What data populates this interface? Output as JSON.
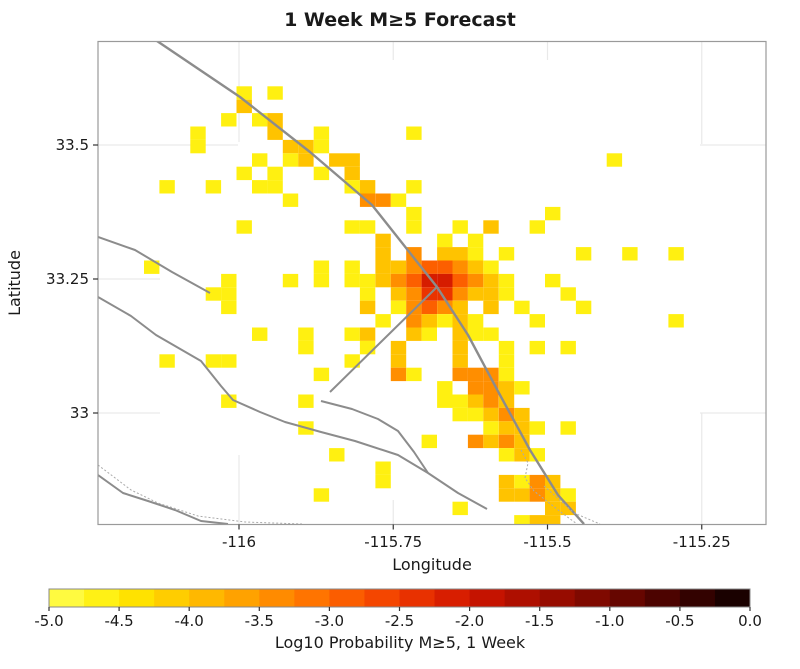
{
  "title": "1 Week M≥5 Forecast",
  "chart_data": {
    "type": "heatmap",
    "title": "1 Week M≥5 Forecast",
    "xlabel": "Longitude",
    "ylabel": "Latitude",
    "xlim": [
      -116.2285,
      -115.146
    ],
    "ylim": [
      32.792,
      33.693
    ],
    "x_ticks": [
      -116,
      -115.75,
      -115.5,
      -115.25
    ],
    "x_tick_labels": [
      "-116",
      "-115.75",
      "-115.5",
      "-115.25"
    ],
    "y_ticks": [
      33.5,
      33.25,
      33
    ],
    "y_tick_labels": [
      "33.5",
      "33.25",
      "33"
    ],
    "grid_on": true,
    "gridline_color": "#e9e9e9",
    "cell_grid": {
      "lon_start": -116.2165,
      "lat_start": 33.672,
      "step": 0.025,
      "value_units": "log10 probability of M>=5 in 1 week"
    },
    "cells": [
      [
        9,
        3,
        -4.6
      ],
      [
        11,
        3,
        -4.6
      ],
      [
        9,
        4,
        -4.0
      ],
      [
        8,
        5,
        -4.6
      ],
      [
        10,
        5,
        -4.6
      ],
      [
        11,
        5,
        -4.0
      ],
      [
        6,
        6,
        -4.6
      ],
      [
        11,
        6,
        -4.0
      ],
      [
        14,
        6,
        -4.6
      ],
      [
        20,
        6,
        -4.6
      ],
      [
        6,
        7,
        -4.6
      ],
      [
        12,
        7,
        -4.0
      ],
      [
        13,
        7,
        -4.0
      ],
      [
        14,
        7,
        -4.6
      ],
      [
        10,
        8,
        -4.6
      ],
      [
        12,
        8,
        -4.6
      ],
      [
        13,
        8,
        -4.0
      ],
      [
        15,
        8,
        -4.0
      ],
      [
        16,
        8,
        -4.0
      ],
      [
        33,
        8,
        -4.6
      ],
      [
        9,
        9,
        -4.6
      ],
      [
        11,
        9,
        -4.6
      ],
      [
        14,
        9,
        -4.6
      ],
      [
        16,
        9,
        -4.0
      ],
      [
        4,
        10,
        -4.6
      ],
      [
        7,
        10,
        -4.6
      ],
      [
        10,
        10,
        -4.6
      ],
      [
        11,
        10,
        -4.6
      ],
      [
        16,
        10,
        -4.6
      ],
      [
        17,
        10,
        -4.0
      ],
      [
        20,
        10,
        -4.6
      ],
      [
        12,
        11,
        -4.6
      ],
      [
        17,
        11,
        -3.4
      ],
      [
        18,
        11,
        -3.4
      ],
      [
        19,
        11,
        -4.6
      ],
      [
        20,
        12,
        -4.6
      ],
      [
        29,
        12,
        -4.6
      ],
      [
        9,
        13,
        -4.6
      ],
      [
        16,
        13,
        -4.6
      ],
      [
        17,
        13,
        -4.6
      ],
      [
        20,
        13,
        -4.6
      ],
      [
        23,
        13,
        -4.6
      ],
      [
        25,
        13,
        -4.0
      ],
      [
        28,
        13,
        -4.6
      ],
      [
        18,
        14,
        -4.0
      ],
      [
        22,
        14,
        -4.6
      ],
      [
        24,
        14,
        -4.6
      ],
      [
        18,
        15,
        -4.0
      ],
      [
        20,
        15,
        -3.4
      ],
      [
        22,
        15,
        -4.0
      ],
      [
        23,
        15,
        -4.0
      ],
      [
        24,
        15,
        -4.6
      ],
      [
        26,
        15,
        -4.6
      ],
      [
        31,
        15,
        -4.6
      ],
      [
        34,
        15,
        -4.6
      ],
      [
        37,
        15,
        -4.6
      ],
      [
        3,
        16,
        -4.6
      ],
      [
        14,
        16,
        -4.6
      ],
      [
        16,
        16,
        -4.6
      ],
      [
        18,
        16,
        -4.0
      ],
      [
        19,
        16,
        -4.0
      ],
      [
        20,
        16,
        -3.4
      ],
      [
        21,
        16,
        -2.9
      ],
      [
        22,
        16,
        -2.9
      ],
      [
        23,
        16,
        -3.4
      ],
      [
        24,
        16,
        -4.0
      ],
      [
        25,
        16,
        -4.6
      ],
      [
        8,
        17,
        -4.6
      ],
      [
        12,
        17,
        -4.6
      ],
      [
        14,
        17,
        -4.6
      ],
      [
        16,
        17,
        -4.6
      ],
      [
        17,
        17,
        -4.6
      ],
      [
        18,
        17,
        -4.0
      ],
      [
        19,
        17,
        -3.4
      ],
      [
        20,
        17,
        -2.9
      ],
      [
        21,
        17,
        -2.1
      ],
      [
        22,
        17,
        -2.1
      ],
      [
        23,
        17,
        -2.9
      ],
      [
        24,
        17,
        -3.4
      ],
      [
        25,
        17,
        -4.0
      ],
      [
        26,
        17,
        -4.6
      ],
      [
        29,
        17,
        -4.6
      ],
      [
        7,
        18,
        -4.6
      ],
      [
        8,
        18,
        -4.6
      ],
      [
        17,
        18,
        -4.6
      ],
      [
        19,
        18,
        -4.0
      ],
      [
        20,
        18,
        -3.4
      ],
      [
        21,
        18,
        -2.4
      ],
      [
        22,
        18,
        -2.4
      ],
      [
        23,
        18,
        -3.4
      ],
      [
        24,
        18,
        -4.0
      ],
      [
        25,
        18,
        -4.0
      ],
      [
        26,
        18,
        -4.6
      ],
      [
        30,
        18,
        -4.6
      ],
      [
        8,
        19,
        -4.6
      ],
      [
        17,
        19,
        -4.0
      ],
      [
        19,
        19,
        -4.6
      ],
      [
        20,
        19,
        -3.4
      ],
      [
        21,
        19,
        -2.9
      ],
      [
        22,
        19,
        -3.4
      ],
      [
        23,
        19,
        -4.0
      ],
      [
        25,
        19,
        -4.0
      ],
      [
        27,
        19,
        -4.6
      ],
      [
        31,
        19,
        -4.6
      ],
      [
        18,
        20,
        -4.6
      ],
      [
        20,
        20,
        -3.4
      ],
      [
        21,
        20,
        -4.0
      ],
      [
        22,
        20,
        -4.6
      ],
      [
        23,
        20,
        -4.0
      ],
      [
        24,
        20,
        -4.6
      ],
      [
        28,
        20,
        -4.6
      ],
      [
        37,
        20,
        -4.6
      ],
      [
        10,
        21,
        -4.6
      ],
      [
        13,
        21,
        -4.6
      ],
      [
        16,
        21,
        -4.6
      ],
      [
        17,
        21,
        -4.0
      ],
      [
        20,
        21,
        -4.0
      ],
      [
        21,
        21,
        -4.6
      ],
      [
        23,
        21,
        -4.0
      ],
      [
        24,
        21,
        -4.6
      ],
      [
        25,
        21,
        -4.6
      ],
      [
        13,
        22,
        -4.6
      ],
      [
        17,
        22,
        -4.6
      ],
      [
        19,
        22,
        -4.0
      ],
      [
        23,
        22,
        -4.0
      ],
      [
        26,
        22,
        -4.6
      ],
      [
        28,
        22,
        -4.6
      ],
      [
        30,
        22,
        -4.6
      ],
      [
        4,
        23,
        -4.6
      ],
      [
        7,
        23,
        -4.6
      ],
      [
        8,
        23,
        -4.6
      ],
      [
        16,
        23,
        -4.6
      ],
      [
        19,
        23,
        -4.0
      ],
      [
        23,
        23,
        -4.0
      ],
      [
        26,
        23,
        -4.6
      ],
      [
        14,
        24,
        -4.6
      ],
      [
        19,
        24,
        -3.4
      ],
      [
        20,
        24,
        -4.6
      ],
      [
        23,
        24,
        -3.4
      ],
      [
        24,
        24,
        -3.4
      ],
      [
        25,
        24,
        -3.4
      ],
      [
        26,
        24,
        -4.6
      ],
      [
        22,
        25,
        -4.6
      ],
      [
        24,
        25,
        -3.4
      ],
      [
        25,
        25,
        -3.4
      ],
      [
        26,
        25,
        -4.0
      ],
      [
        27,
        25,
        -4.6
      ],
      [
        8,
        26,
        -4.6
      ],
      [
        13,
        26,
        -4.6
      ],
      [
        22,
        26,
        -4.6
      ],
      [
        23,
        26,
        -4.6
      ],
      [
        24,
        26,
        -4.0
      ],
      [
        25,
        26,
        -3.4
      ],
      [
        26,
        26,
        -4.0
      ],
      [
        23,
        27,
        -4.6
      ],
      [
        24,
        27,
        -4.6
      ],
      [
        25,
        27,
        -4.0
      ],
      [
        26,
        27,
        -3.4
      ],
      [
        27,
        27,
        -4.0
      ],
      [
        13,
        28,
        -4.6
      ],
      [
        25,
        28,
        -4.6
      ],
      [
        26,
        28,
        -4.0
      ],
      [
        27,
        28,
        -4.0
      ],
      [
        28,
        28,
        -4.6
      ],
      [
        30,
        28,
        -4.6
      ],
      [
        21,
        29,
        -4.6
      ],
      [
        24,
        29,
        -3.4
      ],
      [
        25,
        29,
        -4.0
      ],
      [
        26,
        29,
        -3.4
      ],
      [
        27,
        29,
        -4.0
      ],
      [
        15,
        30,
        -4.6
      ],
      [
        26,
        30,
        -4.6
      ],
      [
        27,
        30,
        -4.0
      ],
      [
        28,
        30,
        -4.6
      ],
      [
        18,
        31,
        -4.6
      ],
      [
        18,
        32,
        -4.6
      ],
      [
        26,
        32,
        -4.0
      ],
      [
        27,
        32,
        -4.6
      ],
      [
        28,
        32,
        -3.4
      ],
      [
        29,
        32,
        -4.0
      ],
      [
        14,
        33,
        -4.6
      ],
      [
        26,
        33,
        -4.0
      ],
      [
        27,
        33,
        -4.0
      ],
      [
        28,
        33,
        -3.4
      ],
      [
        29,
        33,
        -4.0
      ],
      [
        30,
        33,
        -4.6
      ],
      [
        23,
        34,
        -4.6
      ],
      [
        29,
        34,
        -4.0
      ],
      [
        30,
        34,
        -4.0
      ],
      [
        27,
        35,
        -4.6
      ],
      [
        28,
        35,
        -4.0
      ],
      [
        29,
        35,
        -4.0
      ]
    ],
    "faults": {
      "color": "#8c8c8c",
      "solid": [
        [
          [
            -116.1329,
            33.694
          ],
          [
            -115.9984,
            33.5896
          ],
          [
            -115.8849,
            33.4869
          ],
          [
            -115.7844,
            33.3881
          ],
          [
            -115.6791,
            33.2351
          ],
          [
            -115.6288,
            33.1455
          ],
          [
            -115.577,
            33.0336
          ],
          [
            -115.5284,
            32.931
          ],
          [
            -115.483,
            32.847
          ],
          [
            -115.4409,
            32.7929
          ]
        ],
        [
          [
            -115.6791,
            33.2351
          ],
          [
            -115.7633,
            33.1399
          ],
          [
            -115.8525,
            33.0392
          ]
        ],
        [
          [
            -116.2285,
            33.3284
          ],
          [
            -116.1686,
            33.3041
          ],
          [
            -116.1086,
            33.2631
          ],
          [
            -116.047,
            33.2239
          ]
        ],
        [
          [
            -116.2285,
            33.2164
          ],
          [
            -116.175,
            33.181
          ],
          [
            -116.1345,
            33.1455
          ],
          [
            -116.0616,
            33.097
          ],
          [
            -116.0292,
            33.0504
          ],
          [
            -116.0097,
            33.0243
          ],
          [
            -115.966,
            33.0019
          ],
          [
            -115.9255,
            32.9832
          ],
          [
            -115.8671,
            32.9646
          ],
          [
            -115.812,
            32.9478
          ],
          [
            -115.7423,
            32.9216
          ],
          [
            -115.6937,
            32.8881
          ],
          [
            -115.6451,
            32.8507
          ],
          [
            -115.5981,
            32.8209
          ]
        ],
        [
          [
            -115.8671,
            33.0224
          ],
          [
            -115.8168,
            33.0075
          ],
          [
            -115.7747,
            32.9888
          ],
          [
            -115.7423,
            32.9664
          ],
          [
            -115.7164,
            32.9272
          ],
          [
            -115.6937,
            32.8881
          ]
        ],
        [
          [
            -116.2285,
            32.8843
          ],
          [
            -116.188,
            32.8507
          ],
          [
            -116.1475,
            32.8358
          ],
          [
            -116.1037,
            32.819
          ],
          [
            -116.0616,
            32.7985
          ],
          [
            -116.0178,
            32.7929
          ]
        ]
      ],
      "dotted": [
        [
          [
            -116.2285,
            32.903
          ],
          [
            -116.175,
            32.8563
          ],
          [
            -116.1313,
            32.8321
          ],
          [
            -116.0664,
            32.8078
          ],
          [
            -115.9903,
            32.7966
          ],
          [
            -115.8979,
            32.7929
          ]
        ],
        [
          [
            -115.543,
            32.931
          ],
          [
            -115.5316,
            32.9067
          ],
          [
            -115.5365,
            32.8787
          ],
          [
            -115.5219,
            32.8545
          ],
          [
            -115.4992,
            32.834
          ],
          [
            -115.4765,
            32.8134
          ],
          [
            -115.4522,
            32.7929
          ]
        ],
        [
          [
            -115.5057,
            32.8638
          ],
          [
            -115.4798,
            32.8377
          ],
          [
            -115.4571,
            32.8134
          ],
          [
            -115.4149,
            32.7929
          ]
        ]
      ]
    },
    "colorbar": {
      "label": "Log10 Probability M≥5, 1 Week",
      "min": -5.0,
      "max": 0.0,
      "segments": 20,
      "ticks": [
        -5.0,
        -4.5,
        -4.0,
        -3.5,
        -3.0,
        -2.5,
        -2.0,
        -1.5,
        -1.0,
        -0.5,
        0.0
      ],
      "tick_labels": [
        "-5.0",
        "-4.5",
        "-4.0",
        "-3.5",
        "-3.0",
        "-2.5",
        "-2.0",
        "-1.5",
        "-1.0",
        "-0.5",
        "0.0"
      ],
      "stops": [
        [
          -5.0,
          "#FFFF55"
        ],
        [
          -4.5,
          "#FFEC00"
        ],
        [
          -4.0,
          "#FFC300"
        ],
        [
          -3.5,
          "#FF9700"
        ],
        [
          -3.0,
          "#FF6800"
        ],
        [
          -2.5,
          "#F03A00"
        ],
        [
          -2.0,
          "#D01500"
        ],
        [
          -1.5,
          "#A30D00"
        ],
        [
          -1.0,
          "#730700"
        ],
        [
          -0.5,
          "#3F0200"
        ],
        [
          0.0,
          "#0D0000"
        ]
      ]
    }
  },
  "colors": {
    "background": "#ffffff",
    "plot_border": "#9a9a9a",
    "gridline": "#e9e9e9",
    "fault_line": "#8c8c8c",
    "dotted_line": "#aaaaaa",
    "tick": "#333333",
    "text": "#1a1a1a"
  }
}
